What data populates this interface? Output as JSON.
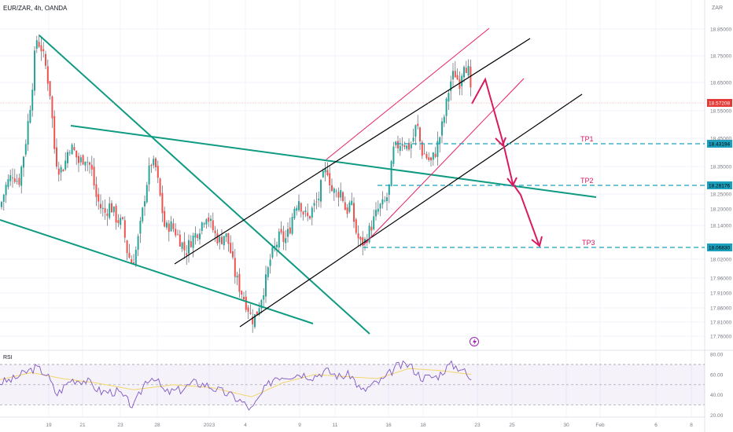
{
  "header": {
    "symbol": "EUR/ZAR, 4h, OANDA",
    "currency": "ZAR"
  },
  "colors": {
    "up": "#26a69a",
    "down": "#ef5350",
    "wick": "#5d606b",
    "teal_line": "#0f9a82",
    "black_line": "#000000",
    "pink_line": "#e91e63",
    "tp_line": "#1ba1be",
    "arrow": "#d81b60",
    "price_label": "#e53935",
    "rsi_line": "#7e57c2",
    "rsi_ma": "#f2d56b"
  },
  "chart_data": {
    "type": "candlestick",
    "title": "EUR/ZAR, 4h, OANDA",
    "ylim": [
      17.73,
      18.9
    ],
    "x_tick_labels": [
      "19",
      "21",
      "23",
      "28",
      "2023",
      "4",
      "9",
      "11",
      "16",
      "18",
      "23",
      "25",
      "30",
      "Feb",
      "6",
      "8"
    ],
    "y_tick_labels": [
      "18.85000",
      "18.75000",
      "18.65000",
      "18.55000",
      "18.45000",
      "18.35000",
      "18.25000",
      "18.20000",
      "18.14000",
      "18.02000",
      "17.96000",
      "17.91000",
      "17.86000",
      "17.81000",
      "17.76000"
    ],
    "last_price": {
      "value": 18.57208,
      "label": "18.57208"
    },
    "take_profits": [
      {
        "name": "TP1",
        "value": 18.43194,
        "label": "18.43194"
      },
      {
        "name": "TP2",
        "value": 18.28176,
        "label": "18.28176"
      },
      {
        "name": "TP3",
        "value": 18.0683,
        "label": "18.06830"
      }
    ],
    "close_path": [
      [
        0,
        18.22
      ],
      [
        8,
        18.3
      ],
      [
        16,
        18.34
      ],
      [
        24,
        18.31
      ],
      [
        32,
        18.44
      ],
      [
        40,
        18.62
      ],
      [
        46,
        18.82
      ],
      [
        52,
        18.79
      ],
      [
        58,
        18.72
      ],
      [
        64,
        18.62
      ],
      [
        70,
        18.4
      ],
      [
        76,
        18.35
      ],
      [
        82,
        18.37
      ],
      [
        88,
        18.44
      ],
      [
        94,
        18.42
      ],
      [
        100,
        18.38
      ],
      [
        108,
        18.4
      ],
      [
        116,
        18.36
      ],
      [
        122,
        18.26
      ],
      [
        128,
        18.22
      ],
      [
        134,
        18.2
      ],
      [
        140,
        18.23
      ],
      [
        148,
        18.18
      ],
      [
        156,
        18.16
      ],
      [
        162,
        18.06
      ],
      [
        168,
        18.02
      ],
      [
        174,
        18.08
      ],
      [
        180,
        18.18
      ],
      [
        186,
        18.3
      ],
      [
        192,
        18.38
      ],
      [
        198,
        18.36
      ],
      [
        204,
        18.25
      ],
      [
        210,
        18.14
      ],
      [
        216,
        18.16
      ],
      [
        222,
        18.14
      ],
      [
        230,
        18.1
      ],
      [
        236,
        18.06
      ],
      [
        242,
        18.1
      ],
      [
        250,
        18.13
      ],
      [
        256,
        18.16
      ],
      [
        262,
        18.2
      ],
      [
        268,
        18.16
      ],
      [
        274,
        18.12
      ],
      [
        280,
        18.1
      ],
      [
        286,
        18.13
      ],
      [
        292,
        18.08
      ],
      [
        298,
        17.99
      ],
      [
        304,
        17.94
      ],
      [
        310,
        17.9
      ],
      [
        316,
        17.86
      ],
      [
        320,
        17.82
      ],
      [
        326,
        17.84
      ],
      [
        332,
        17.9
      ],
      [
        338,
        17.96
      ],
      [
        344,
        18.04
      ],
      [
        350,
        18.08
      ],
      [
        356,
        18.12
      ],
      [
        362,
        18.1
      ],
      [
        368,
        18.14
      ],
      [
        374,
        18.22
      ],
      [
        380,
        18.25
      ],
      [
        386,
        18.2
      ],
      [
        392,
        18.18
      ],
      [
        398,
        18.22
      ],
      [
        404,
        18.24
      ],
      [
        410,
        18.32
      ],
      [
        416,
        18.36
      ],
      [
        422,
        18.28
      ],
      [
        428,
        18.27
      ],
      [
        434,
        18.28
      ],
      [
        440,
        18.2
      ],
      [
        446,
        18.24
      ],
      [
        452,
        18.14
      ],
      [
        458,
        18.09
      ],
      [
        464,
        18.1
      ],
      [
        470,
        18.14
      ],
      [
        476,
        18.18
      ],
      [
        482,
        18.22
      ],
      [
        488,
        18.23
      ],
      [
        494,
        18.27
      ],
      [
        500,
        18.42
      ],
      [
        506,
        18.44
      ],
      [
        512,
        18.46
      ],
      [
        518,
        18.43
      ],
      [
        524,
        18.45
      ],
      [
        530,
        18.52
      ],
      [
        536,
        18.42
      ],
      [
        542,
        18.4
      ],
      [
        548,
        18.38
      ],
      [
        554,
        18.42
      ],
      [
        560,
        18.48
      ],
      [
        566,
        18.56
      ],
      [
        572,
        18.66
      ],
      [
        578,
        18.7
      ],
      [
        584,
        18.66
      ],
      [
        590,
        18.74
      ],
      [
        596,
        18.7
      ],
      [
        600,
        18.57
      ]
    ],
    "rsi": {
      "label": "RSI",
      "ylim": [
        18,
        84
      ],
      "y_tick_labels": [
        "80.00",
        "60.00",
        "40.00",
        "20.00"
      ],
      "band": [
        30,
        70
      ],
      "values": [
        [
          0,
          52
        ],
        [
          16,
          55
        ],
        [
          32,
          62
        ],
        [
          46,
          67
        ],
        [
          60,
          60
        ],
        [
          72,
          40
        ],
        [
          90,
          55
        ],
        [
          110,
          54
        ],
        [
          128,
          43
        ],
        [
          150,
          43
        ],
        [
          170,
          28
        ],
        [
          186,
          55
        ],
        [
          196,
          58
        ],
        [
          210,
          42
        ],
        [
          230,
          45
        ],
        [
          246,
          52
        ],
        [
          262,
          50
        ],
        [
          276,
          45
        ],
        [
          292,
          40
        ],
        [
          306,
          34
        ],
        [
          320,
          25
        ],
        [
          336,
          45
        ],
        [
          350,
          58
        ],
        [
          366,
          59
        ],
        [
          382,
          61
        ],
        [
          398,
          58
        ],
        [
          414,
          64
        ],
        [
          432,
          58
        ],
        [
          446,
          60
        ],
        [
          460,
          43
        ],
        [
          474,
          50
        ],
        [
          488,
          55
        ],
        [
          504,
          68
        ],
        [
          520,
          70
        ],
        [
          536,
          57
        ],
        [
          556,
          58
        ],
        [
          572,
          70
        ],
        [
          588,
          66
        ],
        [
          600,
          52
        ]
      ],
      "ma": [
        [
          0,
          55
        ],
        [
          40,
          62
        ],
        [
          80,
          56
        ],
        [
          120,
          52
        ],
        [
          170,
          45
        ],
        [
          220,
          50
        ],
        [
          270,
          47
        ],
        [
          320,
          38
        ],
        [
          360,
          52
        ],
        [
          400,
          60
        ],
        [
          440,
          58
        ],
        [
          480,
          56
        ],
        [
          520,
          66
        ],
        [
          560,
          64
        ],
        [
          600,
          60
        ]
      ]
    }
  }
}
